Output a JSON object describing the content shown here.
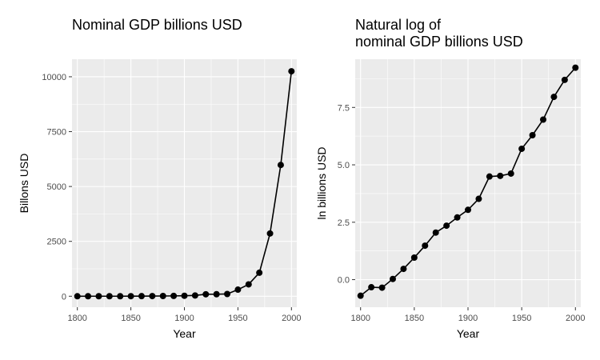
{
  "chart_data": [
    {
      "type": "line",
      "title": "Nominal GDP billions USD",
      "xlabel": "Year",
      "ylabel": "Billons USD",
      "xlim": [
        1795,
        2005
      ],
      "ylim": [
        -500,
        10800
      ],
      "x_ticks": [
        1800,
        1850,
        1900,
        1950,
        2000
      ],
      "x_tick_labels": [
        "1800",
        "1850",
        "1900",
        "1950",
        "2000"
      ],
      "y_ticks": [
        0,
        2500,
        5000,
        7500,
        10000
      ],
      "y_tick_labels": [
        "0",
        "2500",
        "5000",
        "7500",
        "10000"
      ],
      "grid": true,
      "x": [
        1800,
        1810,
        1820,
        1830,
        1840,
        1850,
        1860,
        1870,
        1880,
        1890,
        1900,
        1910,
        1920,
        1930,
        1940,
        1950,
        1960,
        1970,
        1980,
        1990,
        2000
      ],
      "values": [
        0.5,
        0.7,
        0.7,
        1.0,
        1.6,
        2.6,
        4.4,
        7.8,
        10.5,
        15,
        21,
        34,
        89,
        92,
        102,
        300,
        540,
        1070,
        2860,
        5980,
        10250
      ]
    },
    {
      "type": "line",
      "title": [
        "Natural log of",
        "nominal GDP billions USD"
      ],
      "xlabel": "Year",
      "ylabel": "ln billions USD",
      "xlim": [
        1795,
        2005
      ],
      "ylim": [
        -1.2,
        9.6
      ],
      "x_ticks": [
        1800,
        1850,
        1900,
        1950,
        2000
      ],
      "x_tick_labels": [
        "1800",
        "1850",
        "1900",
        "1950",
        "2000"
      ],
      "y_ticks": [
        0,
        2.5,
        5,
        7.5
      ],
      "y_tick_labels": [
        "0.0",
        "2.5",
        "5.0",
        "7.5"
      ],
      "grid": true,
      "x": [
        1800,
        1810,
        1820,
        1830,
        1840,
        1850,
        1860,
        1870,
        1880,
        1890,
        1900,
        1910,
        1920,
        1930,
        1940,
        1950,
        1960,
        1970,
        1980,
        1990,
        2000
      ],
      "values": [
        -0.7,
        -0.33,
        -0.35,
        0.03,
        0.47,
        0.96,
        1.48,
        2.05,
        2.35,
        2.71,
        3.04,
        3.52,
        4.49,
        4.52,
        4.62,
        5.7,
        6.29,
        6.97,
        7.96,
        8.7,
        9.23
      ]
    }
  ]
}
